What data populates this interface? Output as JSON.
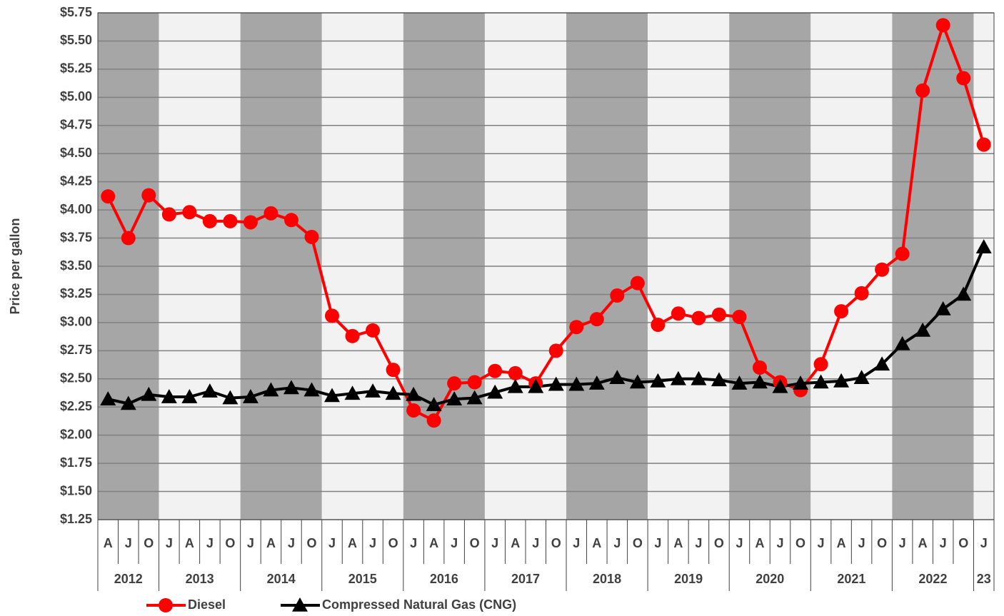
{
  "chart_data": {
    "type": "line",
    "y_label": "Price per gallon",
    "groups": [
      {
        "year": "2012",
        "quarters": [
          "A",
          "J",
          "O"
        ]
      },
      {
        "year": "2013",
        "quarters": [
          "J",
          "A",
          "J",
          "O"
        ]
      },
      {
        "year": "2014",
        "quarters": [
          "J",
          "A",
          "J",
          "O"
        ]
      },
      {
        "year": "2015",
        "quarters": [
          "J",
          "A",
          "J",
          "O"
        ]
      },
      {
        "year": "2016",
        "quarters": [
          "J",
          "A",
          "J",
          "O"
        ]
      },
      {
        "year": "2017",
        "quarters": [
          "J",
          "A",
          "J",
          "O"
        ]
      },
      {
        "year": "2018",
        "quarters": [
          "J",
          "A",
          "J",
          "O"
        ]
      },
      {
        "year": "2019",
        "quarters": [
          "J",
          "A",
          "J",
          "O"
        ]
      },
      {
        "year": "2020",
        "quarters": [
          "J",
          "A",
          "J",
          "O"
        ]
      },
      {
        "year": "2021",
        "quarters": [
          "J",
          "A",
          "J",
          "O"
        ]
      },
      {
        "year": "2022",
        "quarters": [
          "J",
          "A",
          "J",
          "O"
        ]
      },
      {
        "year": "23",
        "quarters": [
          "J"
        ]
      }
    ],
    "band_colors": [
      "#a6a6a6",
      "#f2f2f2"
    ],
    "series": [
      {
        "name": "Diesel",
        "color": "#ff0000",
        "marker": "circle",
        "values": [
          4.12,
          3.75,
          4.13,
          3.96,
          3.98,
          3.9,
          3.9,
          3.89,
          3.97,
          3.91,
          3.76,
          3.06,
          2.88,
          2.93,
          2.58,
          2.22,
          2.13,
          2.46,
          2.47,
          2.57,
          2.55,
          2.46,
          2.75,
          2.96,
          3.03,
          3.24,
          3.35,
          2.98,
          3.08,
          3.04,
          3.07,
          3.05,
          2.6,
          2.47,
          2.4,
          2.63,
          3.1,
          3.26,
          3.47,
          3.61,
          5.06,
          5.64,
          5.17,
          4.58
        ]
      },
      {
        "name": "Compressed Natural Gas (CNG)",
        "color": "#000000",
        "marker": "triangle",
        "values": [
          2.32,
          2.28,
          2.36,
          2.34,
          2.34,
          2.39,
          2.33,
          2.34,
          2.4,
          2.42,
          2.4,
          2.35,
          2.37,
          2.39,
          2.37,
          2.36,
          2.27,
          2.32,
          2.33,
          2.38,
          2.43,
          2.43,
          2.45,
          2.45,
          2.46,
          2.51,
          2.47,
          2.48,
          2.5,
          2.5,
          2.49,
          2.46,
          2.47,
          2.43,
          2.46,
          2.47,
          2.48,
          2.51,
          2.63,
          2.81,
          2.93,
          3.12,
          3.25,
          3.67
        ]
      }
    ],
    "ylim": [
      1.25,
      5.75
    ],
    "yticks": [
      {
        "value": 1.25,
        "label": "$1.25"
      },
      {
        "value": 1.5,
        "label": "$1.50"
      },
      {
        "value": 1.75,
        "label": "$1.75"
      },
      {
        "value": 2.0,
        "label": "$2.00"
      },
      {
        "value": 2.25,
        "label": "$2.25"
      },
      {
        "value": 2.5,
        "label": "$2.50"
      },
      {
        "value": 2.75,
        "label": "$2.75"
      },
      {
        "value": 3.0,
        "label": "$3.00"
      },
      {
        "value": 3.25,
        "label": "$3.25"
      },
      {
        "value": 3.5,
        "label": "$3.50"
      },
      {
        "value": 3.75,
        "label": "$3.75"
      },
      {
        "value": 4.0,
        "label": "$4.00"
      },
      {
        "value": 4.25,
        "label": "$4.25"
      },
      {
        "value": 4.5,
        "label": "$4.50"
      },
      {
        "value": 4.75,
        "label": "$4.75"
      },
      {
        "value": 5.0,
        "label": "$5.00"
      },
      {
        "value": 5.25,
        "label": "$5.25"
      },
      {
        "value": 5.5,
        "label": "$5.50"
      },
      {
        "value": 5.75,
        "label": "$5.75"
      }
    ],
    "grid": true,
    "legend": "bottom"
  }
}
